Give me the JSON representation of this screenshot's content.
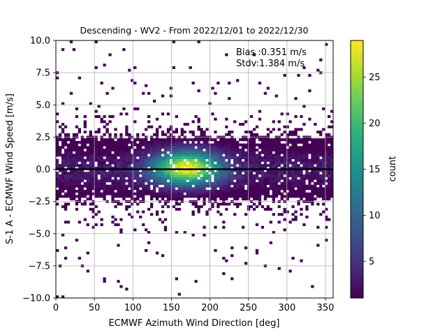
{
  "chart_data": {
    "type": "heatmap",
    "title": "Descending - WV2 - From 2022/12/01 to 2022/12/30",
    "xlabel": "ECMWF Azimuth Wind Direction [deg]",
    "ylabel": "S-1 A - ECMWF Wind Speed [m/s]",
    "xlim": [
      0,
      360
    ],
    "ylim": [
      -10,
      10
    ],
    "xticks": [
      "0",
      "50",
      "100",
      "150",
      "200",
      "250",
      "300",
      "350"
    ],
    "yticks": [
      "−10.0",
      "−7.5",
      "−5.0",
      "−2.5",
      "0.0",
      "2.5",
      "5.0",
      "7.5",
      "10.0"
    ],
    "grid": true,
    "colormap": "viridis",
    "colorbar": {
      "label": "count",
      "range": [
        1,
        29
      ],
      "ticks": [
        "5",
        "10",
        "15",
        "20",
        "25"
      ]
    },
    "reference_line": {
      "y": 0,
      "color": "#000000"
    },
    "annotations": [
      "Bias :0.351 m/s",
      "Stdv:1.384 m/s"
    ],
    "density_model": {
      "bin_width_deg": 3.6,
      "bin_height_ms": 0.2,
      "core_center_deg": 170,
      "core_center_ms": 0.1,
      "peak_count": 29,
      "background_count": 1,
      "core_spread_deg": 30,
      "core_spread_ms": 0.9,
      "band_halfwidth_ms": 2.3
    }
  }
}
